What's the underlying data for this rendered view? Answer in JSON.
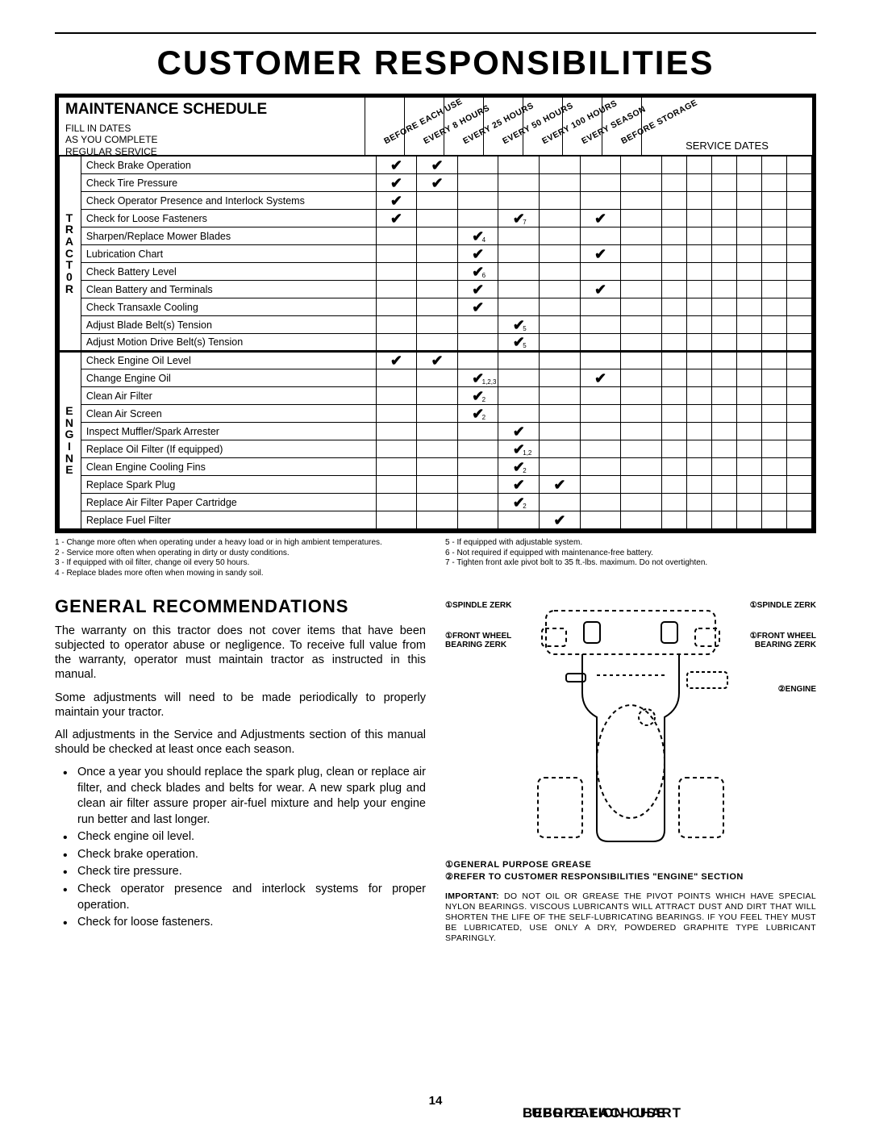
{
  "page_title": "CUSTOMER RESPONSIBILITIES",
  "page_number": "14",
  "schedule": {
    "title": "MAINTENANCE SCHEDULE",
    "fill_lines": [
      "FILL IN DATES",
      "AS YOU COMPLETE",
      "REGULAR SERVICE"
    ],
    "interval_headers": [
      "BEFORE EACH USE",
      "EVERY 8 HOURS",
      "EVERY 25 HOURS",
      "EVERY 50 HOURS",
      "EVERY 100 HOURS",
      "EVERY SEASON",
      "BEFORE STORAGE"
    ],
    "service_dates_label": "SERVICE DATES",
    "service_date_slots": 6,
    "groups": [
      {
        "side": "TRACT0R",
        "rows": [
          {
            "task": "Check Brake Operation",
            "marks": [
              "✔",
              "✔",
              "",
              "",
              "",
              "",
              ""
            ]
          },
          {
            "task": "Check Tire Pressure",
            "marks": [
              "✔",
              "✔",
              "",
              "",
              "",
              "",
              ""
            ]
          },
          {
            "task": "Check Operator Presence and Interlock Systems",
            "marks": [
              "✔",
              "",
              "",
              "",
              "",
              "",
              ""
            ]
          },
          {
            "task": "Check for Loose Fasteners",
            "marks": [
              "✔",
              "",
              "",
              "✔",
              "",
              "✔",
              ""
            ],
            "subs": [
              "",
              "",
              "",
              "7",
              "",
              "",
              ""
            ]
          },
          {
            "task": "Sharpen/Replace Mower Blades",
            "marks": [
              "",
              "",
              "✔",
              "",
              "",
              "",
              ""
            ],
            "subs": [
              "",
              "",
              "4",
              "",
              "",
              "",
              ""
            ]
          },
          {
            "task": "Lubrication Chart",
            "marks": [
              "",
              "",
              "✔",
              "",
              "",
              "✔",
              ""
            ]
          },
          {
            "task": "Check Battery Level",
            "marks": [
              "",
              "",
              "✔",
              "",
              "",
              "",
              ""
            ],
            "subs": [
              "",
              "",
              "6",
              "",
              "",
              "",
              ""
            ]
          },
          {
            "task": "Clean Battery and Terminals",
            "marks": [
              "",
              "",
              "✔",
              "",
              "",
              "✔",
              ""
            ]
          },
          {
            "task": "Check Transaxle Cooling",
            "marks": [
              "",
              "",
              "✔",
              "",
              "",
              "",
              ""
            ]
          },
          {
            "task": "Adjust Blade Belt(s) Tension",
            "marks": [
              "",
              "",
              "",
              "✔",
              "",
              "",
              ""
            ],
            "subs": [
              "",
              "",
              "",
              "5",
              "",
              "",
              ""
            ]
          },
          {
            "task": "Adjust Motion Drive Belt(s) Tension",
            "marks": [
              "",
              "",
              "",
              "✔",
              "",
              "",
              ""
            ],
            "subs": [
              "",
              "",
              "",
              "5",
              "",
              "",
              ""
            ]
          }
        ]
      },
      {
        "side": "ENGINE",
        "rows": [
          {
            "task": "Check Engine Oil Level",
            "marks": [
              "✔",
              "✔",
              "",
              "",
              "",
              "",
              ""
            ]
          },
          {
            "task": "Change Engine Oil",
            "marks": [
              "",
              "",
              "✔",
              "",
              "",
              "✔",
              ""
            ],
            "subs": [
              "",
              "",
              "1,2,3",
              "",
              "",
              "",
              ""
            ]
          },
          {
            "task": "Clean Air Filter",
            "marks": [
              "",
              "",
              "✔",
              "",
              "",
              "",
              ""
            ],
            "subs": [
              "",
              "",
              "2",
              "",
              "",
              "",
              ""
            ]
          },
          {
            "task": "Clean Air Screen",
            "marks": [
              "",
              "",
              "✔",
              "",
              "",
              "",
              ""
            ],
            "subs": [
              "",
              "",
              "2",
              "",
              "",
              "",
              ""
            ]
          },
          {
            "task": "Inspect Muffler/Spark Arrester",
            "marks": [
              "",
              "",
              "",
              "✔",
              "",
              "",
              ""
            ]
          },
          {
            "task": "Replace Oil Filter (If equipped)",
            "marks": [
              "",
              "",
              "",
              "✔",
              "",
              "",
              ""
            ],
            "subs": [
              "",
              "",
              "",
              "1,2",
              "",
              "",
              ""
            ]
          },
          {
            "task": "Clean Engine Cooling Fins",
            "marks": [
              "",
              "",
              "",
              "✔",
              "",
              "",
              ""
            ],
            "subs": [
              "",
              "",
              "",
              "2",
              "",
              "",
              ""
            ]
          },
          {
            "task": "Replace Spark Plug",
            "marks": [
              "",
              "",
              "",
              "✔",
              "✔",
              "",
              ""
            ]
          },
          {
            "task": "Replace Air Filter Paper Cartridge",
            "marks": [
              "",
              "",
              "",
              "✔",
              "",
              "",
              ""
            ],
            "subs": [
              "",
              "",
              "",
              "2",
              "",
              "",
              ""
            ]
          },
          {
            "task": "Replace Fuel Filter",
            "marks": [
              "",
              "",
              "",
              "",
              "✔",
              "",
              ""
            ]
          }
        ]
      }
    ]
  },
  "footnotes": {
    "left": [
      "1 - Change more often when operating under a heavy load or in high ambient temperatures.",
      "2 - Service more often when operating in dirty or dusty conditions.",
      "3 - If equipped with oil filter, change oil every 50 hours.",
      "4 - Replace blades more often when mowing in sandy soil."
    ],
    "right": [
      "5 - If equipped with adjustable system.",
      "6 - Not required if equipped with maintenance-free battery.",
      "7 - Tighten front axle pivot bolt to 35 ft.-lbs. maximum. Do not overtighten."
    ]
  },
  "general": {
    "heading": "GENERAL  RECOMMENDATIONS",
    "paras": [
      "The warranty on this tractor does not cover items that have been subjected to operator abuse or negligence.  To receive full value from the warranty, operator must maintain tractor as instructed in this manual.",
      "Some adjustments will need to be made periodically to properly maintain your tractor.",
      "All adjustments in the Service and Adjustments section of this manual should be checked at least once each season."
    ],
    "bullet": "Once a year you should replace the spark plug, clean or replace air filter, and check blades and belts for wear.  A new spark plug and clean air filter assure proper air-fuel mixture and help your engine run better and last longer."
  },
  "before": {
    "heading": "BEFORE EACH USE",
    "items": [
      "Check engine oil level.",
      "Check brake operation.",
      "Check tire pressure.",
      "Check operator presence and interlock systems for proper operation.",
      "Check for loose fasteners."
    ]
  },
  "lube": {
    "heading": "LUBRICATION CHART",
    "callouts": {
      "spindle_l": "①SPINDLE ZERK",
      "spindle_r": "①SPINDLE ZERK",
      "wheel_l": "①FRONT WHEEL BEARING ZERK",
      "wheel_r": "①FRONT WHEEL BEARING ZERK",
      "engine": "②ENGINE"
    },
    "legend1": "①GENERAL PURPOSE GREASE",
    "legend2": "②REFER TO CUSTOMER RESPONSIBILITIES \"ENGINE\" SECTION",
    "important": "IMPORTANT:  DO NOT OIL OR GREASE THE PIVOT POINTS WHICH HAVE SPECIAL NYLON BEARINGS.  VISCOUS LUBRICANTS WILL ATTRACT DUST AND DIRT THAT WILL SHORTEN THE LIFE OF THE SELF-LUBRICATING BEARINGS.  IF YOU FEEL THEY MUST BE LUBRICATED, USE ONLY A DRY, POWDERED GRAPHITE TYPE LUBRICANT SPARINGLY."
  }
}
